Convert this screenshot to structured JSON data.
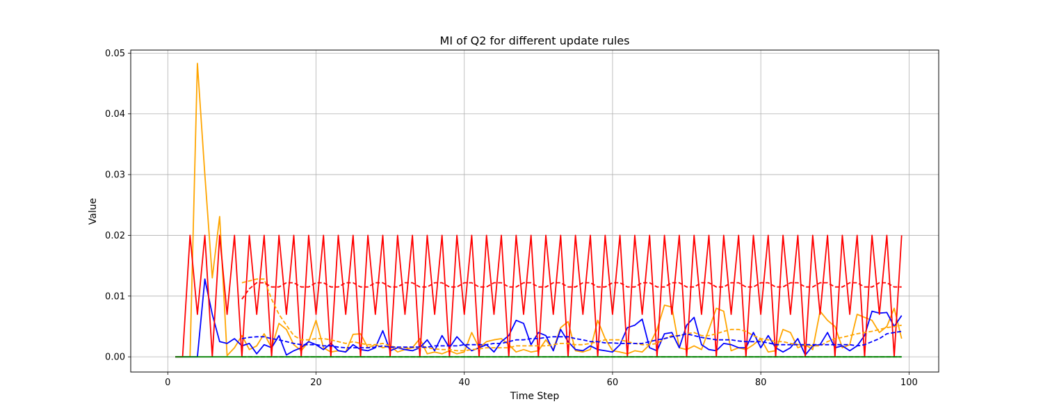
{
  "chart_data": {
    "type": "line",
    "title": "MI of Q2 for different update rules",
    "xlabel": "Time Step",
    "ylabel": "Value",
    "xlim": [
      -5,
      104
    ],
    "ylim": [
      -0.0025,
      0.0505
    ],
    "xticks": [
      0,
      20,
      40,
      60,
      80,
      100
    ],
    "xtick_labels": [
      "0",
      "20",
      "40",
      "60",
      "80",
      "100"
    ],
    "yticks": [
      0.0,
      0.01,
      0.02,
      0.03,
      0.04,
      0.05
    ],
    "ytick_labels": [
      "0.00",
      "0.01",
      "0.02",
      "0.03",
      "0.04",
      "0.05"
    ],
    "grid": true,
    "legend": "none",
    "series": [
      {
        "color": "#ffa500",
        "style": "solid",
        "x_start": 1,
        "values": [
          0,
          0,
          0,
          0.0483,
          0.03,
          0.013,
          0.0231,
          0.0002,
          0.0015,
          0.0035,
          0.0012,
          0.0018,
          0.0038,
          0.0015,
          0.0055,
          0.0045,
          0.002,
          0.001,
          0.0025,
          0.006,
          0.0015,
          0.0008,
          0.001,
          0.0008,
          0.0037,
          0.0038,
          0.0015,
          0.002,
          0.0015,
          0.0018,
          0.0008,
          0.0012,
          0.0015,
          0.003,
          0.0005,
          0.0008,
          0.0005,
          0.001,
          0.0005,
          0.0008,
          0.004,
          0.0015,
          0.0025,
          0.0028,
          0.003,
          0.002,
          0.0008,
          0.0012,
          0.0008,
          0.001,
          0.0028,
          0.0012,
          0.0048,
          0.0058,
          0.001,
          0.0008,
          0.0012,
          0.006,
          0.003,
          0.001,
          0.0008,
          0.0005,
          0.001,
          0.0008,
          0.002,
          0.0045,
          0.0085,
          0.0082,
          0.0015,
          0.0012,
          0.0018,
          0.0012,
          0.0045,
          0.008,
          0.0075,
          0.001,
          0.0015,
          0.0012,
          0.002,
          0.003,
          0.0008,
          0.001,
          0.0045,
          0.004,
          0.0015,
          0.002,
          0.0012,
          0.0075,
          0.006,
          0.005,
          0.0015,
          0.002,
          0.007,
          0.0065,
          0.006,
          0.004,
          0.005,
          0.008,
          0.003
        ]
      },
      {
        "color": "#0000ff",
        "style": "solid",
        "x_start": 1,
        "values": [
          0,
          0,
          0,
          0,
          0.0128,
          0.007,
          0.0025,
          0.0022,
          0.003,
          0.0018,
          0.0022,
          0.0005,
          0.002,
          0.0015,
          0.0035,
          0.0003,
          0.001,
          0.0015,
          0.0025,
          0.002,
          0.0012,
          0.0022,
          0.001,
          0.0008,
          0.002,
          0.0012,
          0.001,
          0.0015,
          0.0043,
          0.001,
          0.0015,
          0.0012,
          0.001,
          0.0015,
          0.0028,
          0.001,
          0.0035,
          0.0015,
          0.0033,
          0.002,
          0.001,
          0.0015,
          0.002,
          0.0008,
          0.0025,
          0.0035,
          0.006,
          0.0055,
          0.002,
          0.004,
          0.0035,
          0.001,
          0.0045,
          0.0025,
          0.0012,
          0.001,
          0.0018,
          0.0012,
          0.001,
          0.0008,
          0.002,
          0.0048,
          0.0052,
          0.0062,
          0.0015,
          0.001,
          0.0038,
          0.004,
          0.0015,
          0.0052,
          0.0065,
          0.002,
          0.0012,
          0.001,
          0.0022,
          0.002,
          0.0015,
          0.0015,
          0.004,
          0.0015,
          0.0035,
          0.0015,
          0.0008,
          0.0015,
          0.003,
          0.0003,
          0.0018,
          0.002,
          0.004,
          0.0015,
          0.0018,
          0.001,
          0.0018,
          0.0035,
          0.0075,
          0.0072,
          0.0073,
          0.005,
          0.0068
        ]
      },
      {
        "color": "#ff0000",
        "style": "solid",
        "x_start": 1,
        "values": [
          0,
          0,
          0.02,
          0.007,
          0.02,
          0,
          0.02,
          0.007,
          0.02,
          0,
          0.02,
          0.007,
          0.02,
          0,
          0.02,
          0.007,
          0.02,
          0,
          0.02,
          0.007,
          0.02,
          0,
          0.02,
          0.007,
          0.02,
          0,
          0.02,
          0.007,
          0.02,
          0,
          0.02,
          0.007,
          0.02,
          0,
          0.02,
          0.007,
          0.02,
          0,
          0.02,
          0.007,
          0.02,
          0,
          0.02,
          0.007,
          0.02,
          0,
          0.02,
          0.007,
          0.02,
          0,
          0.02,
          0.007,
          0.02,
          0,
          0.02,
          0.007,
          0.02,
          0,
          0.02,
          0.007,
          0.02,
          0,
          0.02,
          0.007,
          0.02,
          0,
          0.02,
          0.007,
          0.02,
          0,
          0.02,
          0.007,
          0.02,
          0,
          0.02,
          0.007,
          0.02,
          0,
          0.02,
          0.007,
          0.02,
          0,
          0.02,
          0.007,
          0.02,
          0,
          0.02,
          0.007,
          0.02,
          0,
          0.02,
          0.007,
          0.02,
          0,
          0.02,
          0.007,
          0.02,
          0,
          0.02
        ]
      },
      {
        "color": "#008000",
        "style": "solid",
        "x_start": 1,
        "values": [
          0,
          0,
          0,
          0,
          0,
          0,
          0,
          0,
          0,
          0,
          0,
          0,
          0,
          0,
          0,
          0,
          0,
          0,
          0,
          0,
          0,
          0,
          0,
          0,
          0,
          0,
          0,
          0,
          0,
          0,
          0,
          0,
          0,
          0,
          0,
          0,
          0,
          0,
          0,
          0,
          0,
          0,
          0,
          0,
          0,
          0,
          0,
          0,
          0,
          0,
          0,
          0,
          0,
          0,
          0,
          0,
          0,
          0,
          0,
          0,
          0,
          0,
          0,
          0,
          0,
          0,
          0,
          0,
          0,
          0,
          0,
          0,
          0,
          0,
          0,
          0,
          0,
          0,
          0,
          0,
          0,
          0,
          0,
          0,
          0,
          0,
          0,
          0,
          0,
          0,
          0,
          0,
          0,
          0,
          0,
          0,
          0,
          0,
          0
        ]
      },
      {
        "color": "#ffa500",
        "style": "dashed",
        "x_start": 10,
        "values": [
          0.0122,
          0.0125,
          0.0128,
          0.0128,
          0.0095,
          0.007,
          0.0052,
          0.0035,
          0.0028,
          0.0028,
          0.003,
          0.003,
          0.0028,
          0.0025,
          0.0022,
          0.0025,
          0.0022,
          0.002,
          0.002,
          0.0022,
          0.0018,
          0.0015,
          0.0015,
          0.0015,
          0.0015,
          0.0015,
          0.0013,
          0.0012,
          0.0012,
          0.001,
          0.001,
          0.0012,
          0.0013,
          0.0015,
          0.0015,
          0.0015,
          0.0015,
          0.0018,
          0.0018,
          0.0018,
          0.0018,
          0.0018,
          0.002,
          0.0022,
          0.0022,
          0.002,
          0.002,
          0.0022,
          0.0025,
          0.0028,
          0.0028,
          0.0028,
          0.0025,
          0.0022,
          0.002,
          0.002,
          0.0022,
          0.003,
          0.0035,
          0.0035,
          0.0038,
          0.004,
          0.0035,
          0.0035,
          0.0038,
          0.0042,
          0.0045,
          0.0045,
          0.0042,
          0.0035,
          0.003,
          0.0028,
          0.0025,
          0.0025,
          0.0022,
          0.002,
          0.002,
          0.0018,
          0.0018,
          0.0025,
          0.003,
          0.0032,
          0.0035,
          0.0038,
          0.004,
          0.0042,
          0.0045,
          0.0048,
          0.005,
          0.0052
        ]
      },
      {
        "color": "#0000ff",
        "style": "dashed",
        "x_start": 10,
        "values": [
          0.003,
          0.0032,
          0.0033,
          0.0033,
          0.003,
          0.0028,
          0.0025,
          0.0022,
          0.002,
          0.002,
          0.002,
          0.0018,
          0.0018,
          0.0016,
          0.0015,
          0.0015,
          0.0015,
          0.0015,
          0.0016,
          0.0018,
          0.0016,
          0.0016,
          0.0016,
          0.0016,
          0.0016,
          0.0016,
          0.0018,
          0.0018,
          0.0018,
          0.0018,
          0.002,
          0.002,
          0.002,
          0.002,
          0.0022,
          0.0022,
          0.0025,
          0.0028,
          0.0028,
          0.003,
          0.003,
          0.0032,
          0.0033,
          0.0033,
          0.0033,
          0.003,
          0.0028,
          0.0025,
          0.0025,
          0.0023,
          0.0023,
          0.0022,
          0.0022,
          0.0022,
          0.0022,
          0.0025,
          0.0028,
          0.003,
          0.0033,
          0.0035,
          0.0038,
          0.0035,
          0.0032,
          0.003,
          0.0028,
          0.0028,
          0.0028,
          0.0026,
          0.0025,
          0.0025,
          0.0025,
          0.0023,
          0.002,
          0.002,
          0.002,
          0.002,
          0.002,
          0.002,
          0.002,
          0.002,
          0.002,
          0.002,
          0.002,
          0.0018,
          0.002,
          0.0025,
          0.003,
          0.0038,
          0.004,
          0.0042
        ]
      },
      {
        "color": "#ff0000",
        "style": "dashed",
        "x_start": 10,
        "values": [
          0.0095,
          0.0112,
          0.0122,
          0.0122,
          0.0115,
          0.0115,
          0.0122,
          0.0122,
          0.0115,
          0.0115,
          0.0122,
          0.0122,
          0.0115,
          0.0115,
          0.0122,
          0.0122,
          0.0115,
          0.0115,
          0.0122,
          0.0122,
          0.0115,
          0.0115,
          0.0122,
          0.0122,
          0.0115,
          0.0115,
          0.0122,
          0.0122,
          0.0115,
          0.0115,
          0.0122,
          0.0122,
          0.0115,
          0.0115,
          0.0122,
          0.0122,
          0.0115,
          0.0115,
          0.0122,
          0.0122,
          0.0115,
          0.0115,
          0.0122,
          0.0122,
          0.0115,
          0.0115,
          0.0122,
          0.0122,
          0.0115,
          0.0115,
          0.0122,
          0.0122,
          0.0115,
          0.0115,
          0.0122,
          0.0122,
          0.0115,
          0.0115,
          0.0122,
          0.0122,
          0.0115,
          0.0115,
          0.0122,
          0.0122,
          0.0115,
          0.0115,
          0.0122,
          0.0122,
          0.0115,
          0.0115,
          0.0122,
          0.0122,
          0.0115,
          0.0115,
          0.0122,
          0.0122,
          0.0115,
          0.0115,
          0.0122,
          0.0122,
          0.0115,
          0.0115,
          0.0122,
          0.0122,
          0.0115,
          0.0115,
          0.0122,
          0.0122,
          0.0115,
          0.0115
        ]
      },
      {
        "color": "#008000",
        "style": "dashed",
        "x_start": 10,
        "values": [
          0,
          0,
          0,
          0,
          0,
          0,
          0,
          0,
          0,
          0,
          0,
          0,
          0,
          0,
          0,
          0,
          0,
          0,
          0,
          0,
          0,
          0,
          0,
          0,
          0,
          0,
          0,
          0,
          0,
          0,
          0,
          0,
          0,
          0,
          0,
          0,
          0,
          0,
          0,
          0,
          0,
          0,
          0,
          0,
          0,
          0,
          0,
          0,
          0,
          0,
          0,
          0,
          0,
          0,
          0,
          0,
          0,
          0,
          0,
          0,
          0,
          0,
          0,
          0,
          0,
          0,
          0,
          0,
          0,
          0,
          0,
          0,
          0,
          0,
          0,
          0,
          0,
          0,
          0,
          0,
          0,
          0,
          0,
          0,
          0,
          0,
          0,
          0,
          0,
          0
        ]
      }
    ]
  }
}
